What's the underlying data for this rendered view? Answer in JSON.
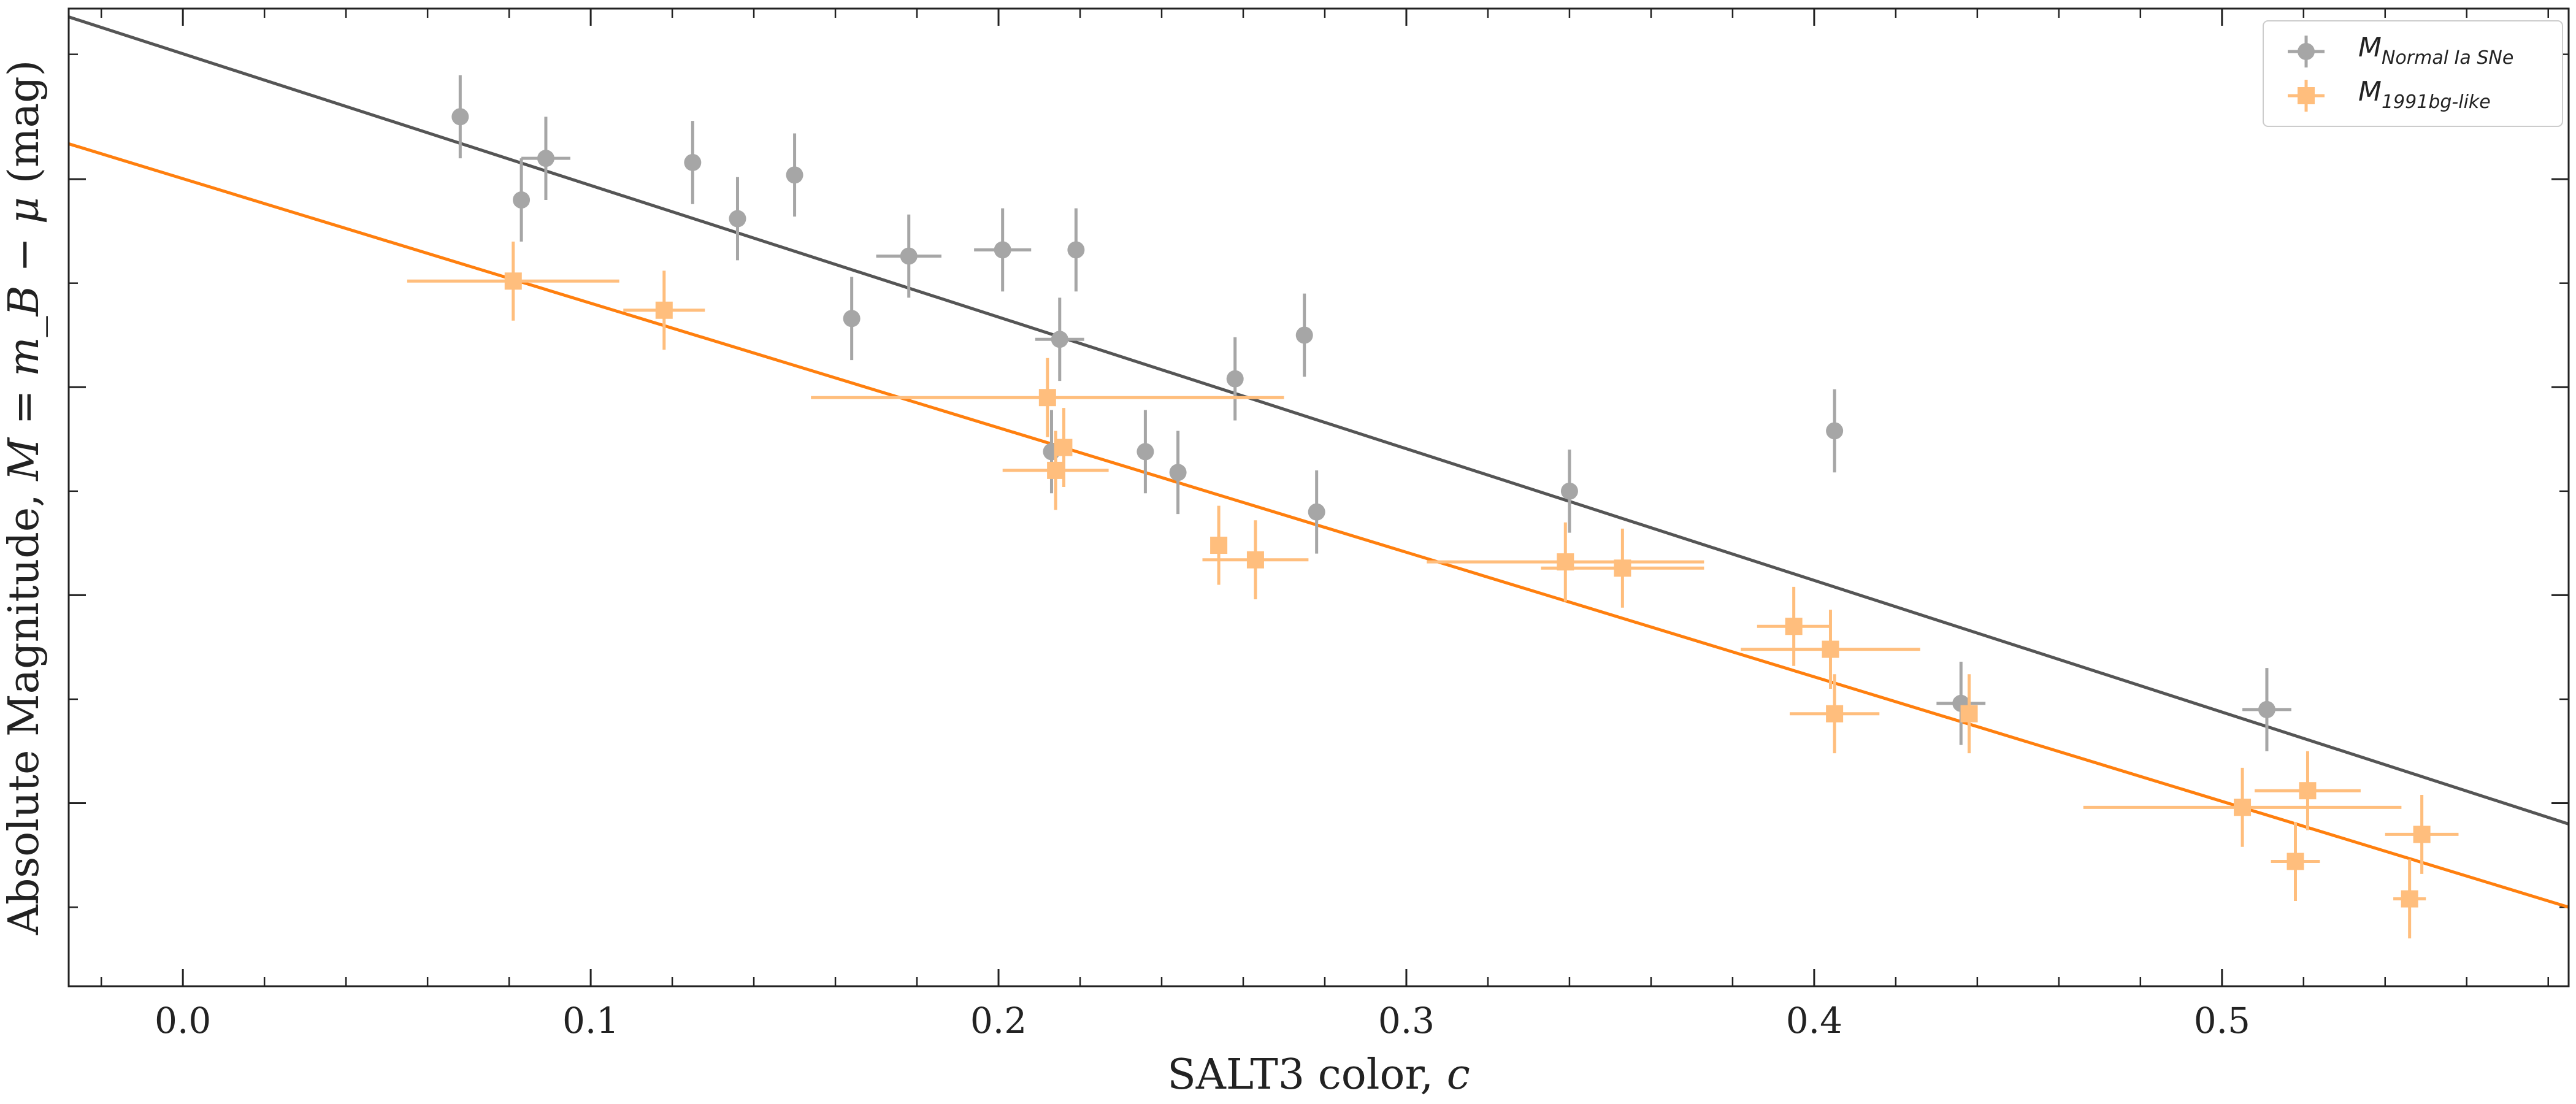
{
  "chart_data": {
    "type": "scatter",
    "title": "",
    "xlabel": {
      "prefix": "SALT3 color, ",
      "var": "c"
    },
    "ylabel": {
      "prefix": "Absolute Magnitude, ",
      "formula": "M = m_B − μ",
      "suffix": " (mag)"
    },
    "xlim": [
      -0.028,
      0.585
    ],
    "ylim": [
      4.7,
      0.0
    ],
    "xticks": [
      0.0,
      0.1,
      0.2,
      0.3,
      0.4,
      0.5
    ],
    "xtick_labels": [
      "0.0",
      "0.1",
      "0.2",
      "0.3",
      "0.4",
      "0.5"
    ],
    "minor_xticks": [
      -0.02,
      0.02,
      0.04,
      0.06,
      0.08,
      0.12,
      0.14,
      0.16,
      0.18,
      0.22,
      0.24,
      0.26,
      0.28,
      0.32,
      0.34,
      0.36,
      0.38,
      0.42,
      0.44,
      0.46,
      0.48,
      0.52,
      0.54,
      0.56,
      0.58
    ],
    "yticks_major": [
      0.82,
      1.82,
      2.82,
      3.82
    ],
    "yticks_minor": [
      0.22,
      1.32,
      2.32,
      3.32,
      4.32
    ],
    "ytick_labels_shown": false,
    "grid": false,
    "legend_position": "top-right",
    "series": [
      {
        "name": "Normal Ia SNe",
        "legend_label": {
          "main": "M",
          "sub": "Normal Ia SNe"
        },
        "marker": "circle",
        "color": "#a6a6a6",
        "points": [
          {
            "x": 0.068,
            "y": 0.52,
            "xerr": 0.0,
            "yerr": 0.2
          },
          {
            "x": 0.083,
            "y": 0.92,
            "xerr": 0.0,
            "yerr": 0.2
          },
          {
            "x": 0.089,
            "y": 0.72,
            "xerr": 0.006,
            "yerr": 0.2
          },
          {
            "x": 0.125,
            "y": 0.74,
            "xerr": 0.0,
            "yerr": 0.2
          },
          {
            "x": 0.136,
            "y": 1.01,
            "xerr": 0.0,
            "yerr": 0.2
          },
          {
            "x": 0.15,
            "y": 0.8,
            "xerr": 0.0,
            "yerr": 0.2
          },
          {
            "x": 0.164,
            "y": 1.49,
            "xerr": 0.0,
            "yerr": 0.2
          },
          {
            "x": 0.178,
            "y": 1.19,
            "xerr": 0.008,
            "yerr": 0.2
          },
          {
            "x": 0.201,
            "y": 1.16,
            "xerr": 0.007,
            "yerr": 0.2
          },
          {
            "x": 0.215,
            "y": 1.59,
            "xerr": 0.006,
            "yerr": 0.2
          },
          {
            "x": 0.219,
            "y": 1.16,
            "xerr": 0.0,
            "yerr": 0.2
          },
          {
            "x": 0.213,
            "y": 2.13,
            "xerr": 0.0,
            "yerr": 0.2
          },
          {
            "x": 0.236,
            "y": 2.13,
            "xerr": 0.0,
            "yerr": 0.2
          },
          {
            "x": 0.244,
            "y": 2.23,
            "xerr": 0.0,
            "yerr": 0.2
          },
          {
            "x": 0.258,
            "y": 1.78,
            "xerr": 0.0,
            "yerr": 0.2
          },
          {
            "x": 0.275,
            "y": 1.57,
            "xerr": 0.0,
            "yerr": 0.2
          },
          {
            "x": 0.278,
            "y": 2.42,
            "xerr": 0.0,
            "yerr": 0.2
          },
          {
            "x": 0.34,
            "y": 2.32,
            "xerr": 0.0,
            "yerr": 0.2
          },
          {
            "x": 0.405,
            "y": 2.03,
            "xerr": 0.0,
            "yerr": 0.2
          },
          {
            "x": 0.436,
            "y": 3.34,
            "xerr": 0.006,
            "yerr": 0.2
          },
          {
            "x": 0.511,
            "y": 3.37,
            "xerr": 0.006,
            "yerr": 0.2
          }
        ]
      },
      {
        "name": "1991bg-like",
        "legend_label": {
          "main": "M",
          "sub": "1991bg-like"
        },
        "marker": "square",
        "color": "#ffbe7d",
        "points": [
          {
            "x": 0.081,
            "y": 1.31,
            "xerr": 0.026,
            "yerr": 0.19
          },
          {
            "x": 0.118,
            "y": 1.45,
            "xerr": 0.01,
            "yerr": 0.19
          },
          {
            "x": 0.212,
            "y": 1.87,
            "xerr": 0.058,
            "yerr": 0.19
          },
          {
            "x": 0.216,
            "y": 2.11,
            "xerr": 0.0,
            "yerr": 0.19
          },
          {
            "x": 0.214,
            "y": 2.22,
            "xerr": 0.013,
            "yerr": 0.19
          },
          {
            "x": 0.254,
            "y": 2.58,
            "xerr": 0.0,
            "yerr": 0.19
          },
          {
            "x": 0.263,
            "y": 2.65,
            "xerr": 0.013,
            "yerr": 0.19
          },
          {
            "x": 0.339,
            "y": 2.66,
            "xerr": 0.034,
            "yerr": 0.19
          },
          {
            "x": 0.353,
            "y": 2.69,
            "xerr": 0.02,
            "yerr": 0.19
          },
          {
            "x": 0.395,
            "y": 2.97,
            "xerr": 0.009,
            "yerr": 0.19
          },
          {
            "x": 0.404,
            "y": 3.08,
            "xerr": 0.022,
            "yerr": 0.19
          },
          {
            "x": 0.405,
            "y": 3.39,
            "xerr": 0.011,
            "yerr": 0.19
          },
          {
            "x": 0.438,
            "y": 3.39,
            "xerr": 0.0,
            "yerr": 0.19
          },
          {
            "x": 0.505,
            "y": 3.84,
            "xerr": 0.039,
            "yerr": 0.19
          },
          {
            "x": 0.521,
            "y": 3.76,
            "xerr": 0.013,
            "yerr": 0.19
          },
          {
            "x": 0.518,
            "y": 4.1,
            "xerr": 0.006,
            "yerr": 0.19
          },
          {
            "x": 0.549,
            "y": 3.97,
            "xerr": 0.009,
            "yerr": 0.19
          },
          {
            "x": 0.546,
            "y": 4.28,
            "xerr": 0.004,
            "yerr": 0.19
          }
        ]
      }
    ],
    "fit_lines": [
      {
        "series": "Normal Ia SNe",
        "color": "#555555",
        "x": [
          -0.028,
          0.585
        ],
        "y": [
          0.04,
          3.92
        ]
      },
      {
        "series": "1991bg-like",
        "color": "#ff7f0e",
        "x": [
          -0.028,
          0.585
        ],
        "y": [
          0.65,
          4.32
        ]
      }
    ]
  }
}
